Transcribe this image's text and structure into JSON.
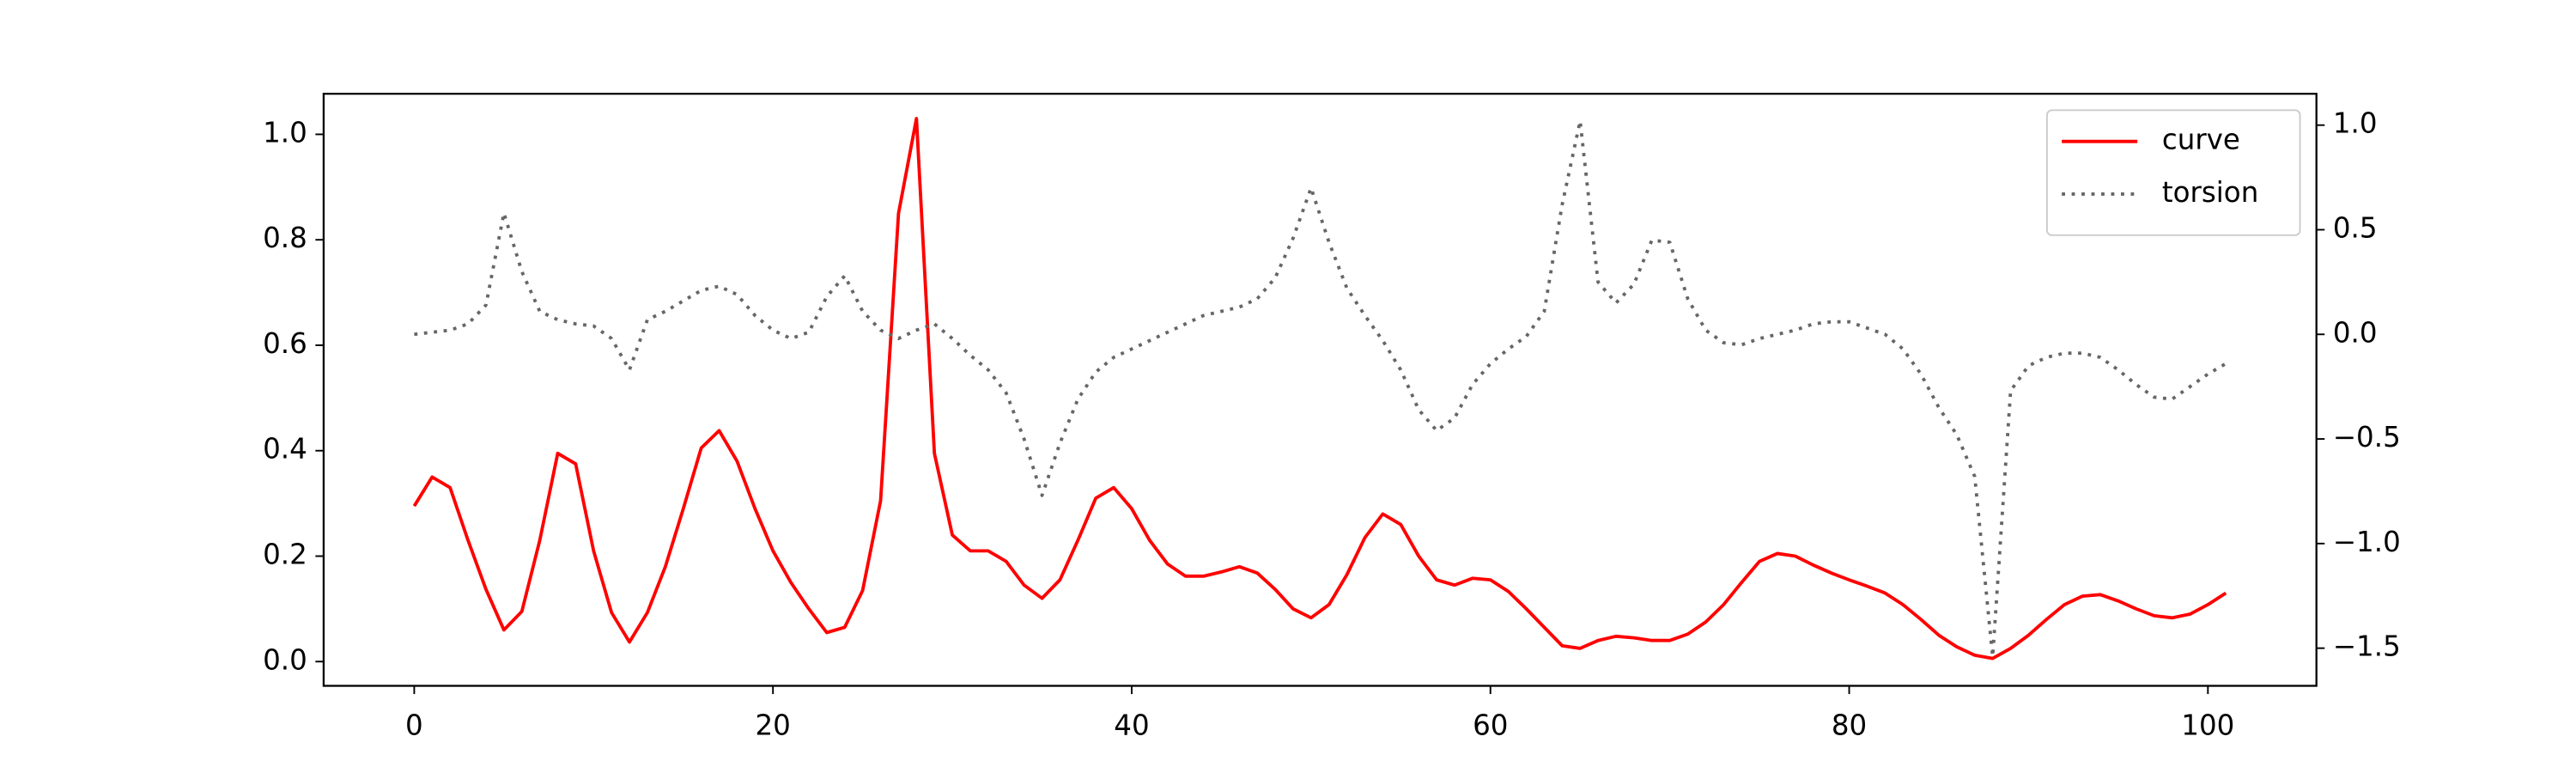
{
  "chart_data": {
    "type": "line",
    "x": [
      0,
      1,
      2,
      3,
      4,
      5,
      6,
      7,
      8,
      9,
      10,
      11,
      12,
      13,
      14,
      15,
      16,
      17,
      18,
      19,
      20,
      21,
      22,
      23,
      24,
      25,
      26,
      27,
      28,
      29,
      30,
      31,
      32,
      33,
      34,
      35,
      36,
      37,
      38,
      39,
      40,
      41,
      42,
      43,
      44,
      45,
      46,
      47,
      48,
      49,
      50,
      51,
      52,
      53,
      54,
      55,
      56,
      57,
      58,
      59,
      60,
      61,
      62,
      63,
      64,
      65,
      66,
      67,
      68,
      69,
      70,
      71,
      72,
      73,
      74,
      75,
      76,
      77,
      78,
      79,
      80,
      81,
      82,
      83,
      84,
      85,
      86,
      87,
      88,
      89,
      90,
      91,
      92,
      93,
      94,
      95,
      96,
      97,
      98,
      99,
      100,
      101
    ],
    "series": [
      {
        "name": "curve",
        "color": "#ff0000",
        "dash": "solid",
        "values": [
          0.295,
          0.35,
          0.33,
          0.23,
          0.137,
          0.06,
          0.095,
          0.23,
          0.395,
          0.375,
          0.21,
          0.093,
          0.037,
          0.093,
          0.18,
          0.29,
          0.405,
          0.438,
          0.38,
          0.29,
          0.21,
          0.15,
          0.1,
          0.055,
          0.065,
          0.135,
          0.305,
          0.85,
          1.03,
          0.395,
          0.24,
          0.21,
          0.21,
          0.19,
          0.145,
          0.12,
          0.155,
          0.23,
          0.31,
          0.33,
          0.29,
          0.23,
          0.185,
          0.162,
          0.162,
          0.17,
          0.18,
          0.168,
          0.137,
          0.1,
          0.083,
          0.108,
          0.165,
          0.235,
          0.28,
          0.26,
          0.2,
          0.155,
          0.145,
          0.158,
          0.155,
          0.133,
          0.1,
          0.065,
          0.03,
          0.025,
          0.04,
          0.048,
          0.045,
          0.04,
          0.04,
          0.052,
          0.075,
          0.108,
          0.15,
          0.19,
          0.205,
          0.2,
          0.183,
          0.168,
          0.155,
          0.143,
          0.13,
          0.108,
          0.08,
          0.05,
          0.028,
          0.012,
          0.006,
          0.025,
          0.05,
          0.08,
          0.108,
          0.124,
          0.127,
          0.115,
          0.1,
          0.087,
          0.083,
          0.09,
          0.108,
          0.13
        ]
      },
      {
        "name": "torsion",
        "color": "#666666",
        "dash": "dotted",
        "axis": "y2",
        "values": [
          0.0,
          0.01,
          0.02,
          0.05,
          0.14,
          0.58,
          0.3,
          0.11,
          0.07,
          0.05,
          0.04,
          -0.02,
          -0.17,
          0.07,
          0.11,
          0.16,
          0.21,
          0.23,
          0.19,
          0.09,
          0.02,
          -0.02,
          0.01,
          0.18,
          0.28,
          0.11,
          0.02,
          -0.02,
          0.02,
          0.05,
          -0.02,
          -0.1,
          -0.17,
          -0.28,
          -0.5,
          -0.77,
          -0.52,
          -0.31,
          -0.18,
          -0.11,
          -0.07,
          -0.03,
          0.01,
          0.05,
          0.09,
          0.11,
          0.13,
          0.17,
          0.27,
          0.46,
          0.7,
          0.44,
          0.22,
          0.09,
          -0.03,
          -0.17,
          -0.36,
          -0.46,
          -0.4,
          -0.24,
          -0.14,
          -0.07,
          -0.01,
          0.11,
          0.62,
          1.02,
          0.25,
          0.15,
          0.24,
          0.45,
          0.44,
          0.17,
          0.02,
          -0.04,
          -0.05,
          -0.02,
          0.0,
          0.02,
          0.05,
          0.06,
          0.06,
          0.03,
          0.0,
          -0.07,
          -0.19,
          -0.35,
          -0.48,
          -0.68,
          -1.54,
          -0.27,
          -0.15,
          -0.11,
          -0.09,
          -0.09,
          -0.11,
          -0.17,
          -0.24,
          -0.3,
          -0.31,
          -0.25,
          -0.19,
          -0.14
        ]
      }
    ],
    "xlim": [
      -5.05,
      106.05
    ],
    "xticks": [
      0,
      20,
      40,
      60,
      80,
      100
    ],
    "ylim": [
      -0.046,
      1.077
    ],
    "yticks": [
      {
        "value": 0,
        "label": "0.0"
      },
      {
        "value": 0.2,
        "label": "0.2"
      },
      {
        "value": 0.4,
        "label": "0.4"
      },
      {
        "value": 0.6,
        "label": "0.6"
      },
      {
        "value": 0.8,
        "label": "0.8"
      },
      {
        "value": 1,
        "label": "1.0"
      }
    ],
    "y2lim": [
      -1.68,
      1.15
    ],
    "y2ticks": [
      {
        "value": -1.5,
        "label": "−1.5"
      },
      {
        "value": -1,
        "label": "−1.0"
      },
      {
        "value": -0.5,
        "label": "−0.5"
      },
      {
        "value": 0,
        "label": "0.0"
      },
      {
        "value": 0.5,
        "label": "0.5"
      },
      {
        "value": 1,
        "label": "1.0"
      }
    ],
    "grid": false,
    "legend": "upper right"
  }
}
